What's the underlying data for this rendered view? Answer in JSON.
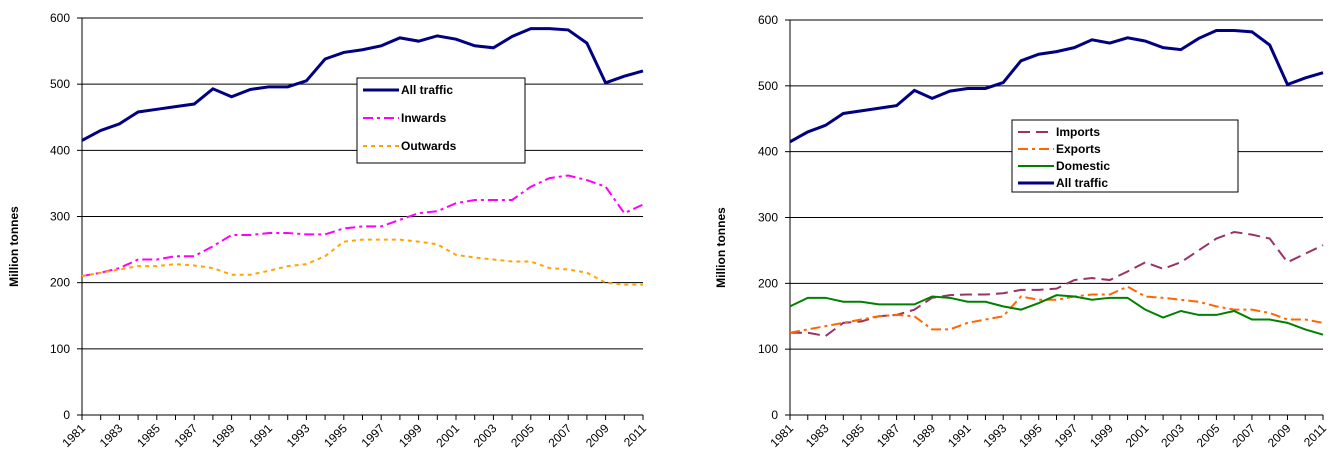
{
  "chart_data": [
    {
      "type": "line",
      "y_label": "Million tonnes",
      "categories": [
        "1981",
        null,
        "1983",
        null,
        "1985",
        null,
        "1987",
        null,
        "1989",
        null,
        "1991",
        null,
        "1993",
        null,
        "1995",
        null,
        "1997",
        null,
        "1999",
        null,
        "2001",
        null,
        "2003",
        null,
        "2005",
        null,
        "2007",
        null,
        "2009",
        null,
        "2011"
      ],
      "ylim": [
        0,
        600
      ],
      "yticks": [
        0,
        100,
        200,
        300,
        400,
        500,
        600
      ],
      "grid": true,
      "series": [
        {
          "name": "All traffic",
          "color": "#000080",
          "dash": "solid",
          "values": [
            415,
            430,
            440,
            458,
            462,
            466,
            470,
            493,
            481,
            492,
            496,
            496,
            505,
            538,
            548,
            552,
            558,
            570,
            565,
            573,
            568,
            558,
            555,
            572,
            584,
            584,
            582,
            562,
            502,
            512,
            520
          ]
        },
        {
          "name": "Inwards",
          "color": "#ff00ff",
          "dash": "dashdot",
          "values": [
            210,
            215,
            222,
            235,
            235,
            240,
            240,
            255,
            272,
            272,
            275,
            275,
            273,
            273,
            282,
            285,
            285,
            295,
            305,
            308,
            320,
            325,
            325,
            325,
            345,
            358,
            362,
            355,
            345,
            305,
            318
          ]
        },
        {
          "name": "Outwards",
          "color": "#ffa500",
          "dash": "dot",
          "values": [
            210,
            215,
            220,
            225,
            225,
            228,
            226,
            222,
            212,
            212,
            218,
            225,
            228,
            240,
            262,
            265,
            265,
            265,
            262,
            258,
            242,
            238,
            235,
            232,
            232,
            222,
            220,
            215,
            200,
            197,
            197
          ]
        }
      ]
    },
    {
      "type": "line",
      "y_label": "Million tonnes",
      "categories": [
        "1981",
        null,
        "1983",
        null,
        "1985",
        null,
        "1987",
        null,
        "1989",
        null,
        "1991",
        null,
        "1993",
        null,
        "1995",
        null,
        "1997",
        null,
        "1999",
        null,
        "2001",
        null,
        "2003",
        null,
        "2005",
        null,
        "2007",
        null,
        "2009",
        null,
        "2011"
      ],
      "ylim": [
        0,
        600
      ],
      "yticks": [
        0,
        100,
        200,
        300,
        400,
        500,
        600
      ],
      "grid": true,
      "series": [
        {
          "name": "Imports",
          "color": "#993366",
          "dash": "dash",
          "values": [
            125,
            125,
            120,
            140,
            142,
            150,
            152,
            160,
            178,
            182,
            183,
            183,
            185,
            190,
            190,
            192,
            205,
            208,
            205,
            218,
            232,
            222,
            232,
            250,
            268,
            278,
            274,
            268,
            232,
            245,
            258
          ]
        },
        {
          "name": "Exports",
          "color": "#ff6600",
          "dash": "dashdot",
          "values": [
            125,
            130,
            135,
            140,
            145,
            150,
            152,
            150,
            130,
            130,
            140,
            145,
            150,
            180,
            175,
            175,
            180,
            183,
            183,
            195,
            180,
            178,
            175,
            172,
            165,
            160,
            160,
            155,
            145,
            145,
            140
          ]
        },
        {
          "name": "Domestic",
          "color": "#008000",
          "dash": "solid",
          "values": [
            165,
            178,
            178,
            172,
            172,
            168,
            168,
            168,
            180,
            178,
            172,
            172,
            165,
            160,
            170,
            182,
            180,
            175,
            178,
            178,
            160,
            148,
            158,
            152,
            152,
            158,
            145,
            145,
            140,
            130,
            122
          ]
        },
        {
          "name": "All traffic",
          "color": "#000080",
          "dash": "solid",
          "values": [
            415,
            430,
            440,
            458,
            462,
            466,
            470,
            493,
            481,
            492,
            496,
            496,
            505,
            538,
            548,
            552,
            558,
            570,
            565,
            573,
            568,
            558,
            555,
            572,
            584,
            584,
            582,
            562,
            502,
            512,
            520
          ]
        }
      ]
    }
  ]
}
